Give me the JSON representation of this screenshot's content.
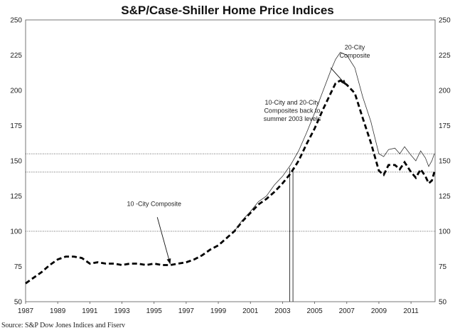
{
  "chart_data": {
    "type": "line",
    "title": "S&P/Case-Shiller Home Price Indices",
    "xlabel": "",
    "ylabel": "",
    "xlim": [
      1987,
      2012.5
    ],
    "ylim": [
      50,
      250
    ],
    "y_ticks": [
      50,
      75,
      100,
      125,
      150,
      175,
      200,
      225,
      250
    ],
    "x_tick_labels": [
      "1987",
      "1989",
      "1991",
      "1993",
      "1995",
      "1997",
      "1999",
      "2001",
      "2003",
      "2005",
      "2007",
      "2009",
      "2011"
    ],
    "x_tick_values": [
      1987,
      1989,
      1991,
      1993,
      1995,
      1997,
      1999,
      2001,
      2003,
      2005,
      2007,
      2009,
      2011
    ],
    "reference_lines": [
      {
        "name": "upper-dotted",
        "y": 155
      },
      {
        "name": "middle-dotted",
        "y": 142
      },
      {
        "name": "lower-dotted",
        "y": 100
      }
    ],
    "vertical_markers": [
      2003.45,
      2003.65
    ],
    "series": [
      {
        "name": "10-City Composite",
        "style": "dashed-bold",
        "points": [
          [
            1987,
            63
          ],
          [
            1987.5,
            67
          ],
          [
            1988,
            71
          ],
          [
            1988.5,
            76
          ],
          [
            1989,
            80
          ],
          [
            1989.5,
            82
          ],
          [
            1990,
            82
          ],
          [
            1990.5,
            81
          ],
          [
            1991,
            77
          ],
          [
            1991.5,
            78
          ],
          [
            1992,
            77
          ],
          [
            1992.5,
            77
          ],
          [
            1993,
            76
          ],
          [
            1993.5,
            77
          ],
          [
            1994,
            77
          ],
          [
            1994.5,
            76
          ],
          [
            1995,
            77
          ],
          [
            1995.5,
            76
          ],
          [
            1996,
            76
          ],
          [
            1996.5,
            77
          ],
          [
            1997,
            78
          ],
          [
            1997.5,
            80
          ],
          [
            1998,
            83
          ],
          [
            1998.5,
            87
          ],
          [
            1999,
            90
          ],
          [
            1999.5,
            95
          ],
          [
            2000,
            100
          ],
          [
            2000.5,
            107
          ],
          [
            2001,
            113
          ],
          [
            2001.5,
            119
          ],
          [
            2002,
            123
          ],
          [
            2002.5,
            128
          ],
          [
            2003,
            134
          ],
          [
            2003.5,
            141
          ],
          [
            2004,
            150
          ],
          [
            2004.5,
            162
          ],
          [
            2005,
            173
          ],
          [
            2005.5,
            186
          ],
          [
            2006,
            198
          ],
          [
            2006.3,
            205
          ],
          [
            2006.6,
            207
          ],
          [
            2007,
            204
          ],
          [
            2007.5,
            198
          ],
          [
            2008,
            180
          ],
          [
            2008.5,
            163
          ],
          [
            2009,
            143
          ],
          [
            2009.3,
            140
          ],
          [
            2009.6,
            147
          ],
          [
            2010,
            147
          ],
          [
            2010.3,
            144
          ],
          [
            2010.6,
            149
          ],
          [
            2011,
            142
          ],
          [
            2011.3,
            138
          ],
          [
            2011.6,
            144
          ],
          [
            2011.9,
            139
          ],
          [
            2012.1,
            134
          ],
          [
            2012.3,
            136
          ],
          [
            2012.45,
            142
          ]
        ]
      },
      {
        "name": "20-City Composite",
        "style": "solid-thin",
        "points": [
          [
            2000,
            100
          ],
          [
            2000.5,
            108
          ],
          [
            2001,
            114
          ],
          [
            2001.5,
            121
          ],
          [
            2002,
            125
          ],
          [
            2002.5,
            133
          ],
          [
            2003,
            139
          ],
          [
            2003.5,
            147
          ],
          [
            2004,
            157
          ],
          [
            2004.5,
            170
          ],
          [
            2005,
            184
          ],
          [
            2005.5,
            199
          ],
          [
            2006,
            214
          ],
          [
            2006.3,
            222
          ],
          [
            2006.6,
            227
          ],
          [
            2007,
            225
          ],
          [
            2007.5,
            216
          ],
          [
            2008,
            195
          ],
          [
            2008.5,
            178
          ],
          [
            2009,
            155
          ],
          [
            2009.3,
            153
          ],
          [
            2009.6,
            158
          ],
          [
            2010,
            159
          ],
          [
            2010.3,
            155
          ],
          [
            2010.6,
            160
          ],
          [
            2011,
            154
          ],
          [
            2011.3,
            150
          ],
          [
            2011.6,
            157
          ],
          [
            2011.9,
            152
          ],
          [
            2012.1,
            146
          ],
          [
            2012.3,
            150
          ],
          [
            2012.45,
            155
          ]
        ]
      }
    ],
    "annotations": [
      {
        "name": "annotation-20-city",
        "lines": [
          "20-City",
          "Composite"
        ],
        "x": 2007.5,
        "y": 229
      },
      {
        "name": "annotation-back-to-2003",
        "lines": [
          "10-City and 20-City",
          "Composites back to",
          "summer 2003 levels"
        ],
        "x": 2003.6,
        "y": 190
      },
      {
        "name": "annotation-10-city",
        "lines": [
          "10 -City Composite"
        ],
        "x": 1995,
        "y": 118
      }
    ]
  },
  "source": "Source: S&P Dow Jones Indices and Fiserv"
}
